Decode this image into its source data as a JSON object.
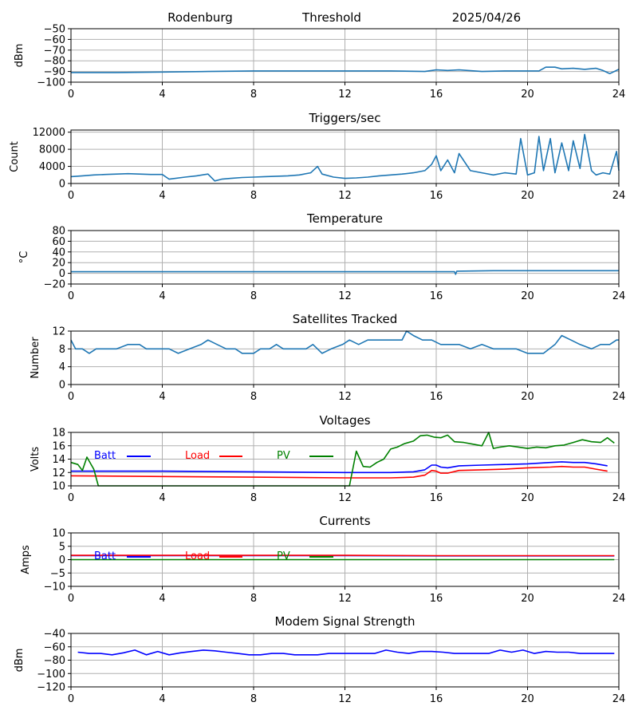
{
  "header": {
    "station": "Rodenburg",
    "panel": "Threshold",
    "date": "2025/04/26"
  },
  "colors": {
    "series_default": "#1f77b4",
    "batt": "#0000ff",
    "load": "#ff0000",
    "pv": "#008000",
    "grid": "#b0b0b0"
  },
  "chart_data": [
    {
      "type": "line",
      "title": "",
      "ylabel": "dBm",
      "xlim": [
        0,
        24
      ],
      "ylim": [
        -100,
        -50
      ],
      "yticks": [
        -100,
        -90,
        -80,
        -70,
        -60,
        -50
      ],
      "xticks": [
        0,
        4,
        8,
        12,
        16,
        20,
        24
      ],
      "grid": true,
      "series": [
        {
          "color": "#1f77b4",
          "x": [
            0,
            2,
            4,
            6,
            8,
            10,
            12,
            14,
            15.5,
            16,
            16.5,
            17,
            18,
            19,
            20,
            20.5,
            20.8,
            21.2,
            21.5,
            22,
            22.5,
            23,
            23.3,
            23.6,
            24
          ],
          "y": [
            -91,
            -91,
            -90.5,
            -90,
            -89.5,
            -89.5,
            -89.5,
            -89.5,
            -90,
            -88.5,
            -89,
            -88.5,
            -90,
            -89.5,
            -89.5,
            -89.5,
            -86,
            -86,
            -87.5,
            -87,
            -88,
            -87,
            -89,
            -92,
            -88
          ]
        }
      ]
    },
    {
      "type": "line",
      "title": "Triggers/sec",
      "ylabel": "Count",
      "xlim": [
        0,
        24
      ],
      "ylim": [
        0,
        12500
      ],
      "yticks": [
        0,
        4000,
        8000,
        12000
      ],
      "xticks": [
        0,
        4,
        8,
        12,
        16,
        20,
        24
      ],
      "grid": true,
      "series": [
        {
          "color": "#1f77b4",
          "x": [
            0,
            0.5,
            1,
            1.5,
            2,
            2.5,
            3,
            3.5,
            4,
            4.3,
            5,
            5.5,
            6,
            6.3,
            6.6,
            7,
            7.5,
            8,
            8.5,
            9,
            9.5,
            10,
            10.5,
            10.8,
            11,
            11.5,
            12,
            12.5,
            13,
            13.5,
            14,
            14.5,
            15,
            15.5,
            15.8,
            16,
            16.2,
            16.5,
            16.8,
            17,
            17.5,
            18,
            18.5,
            19,
            19.5,
            19.7,
            20,
            20.3,
            20.5,
            20.7,
            21,
            21.2,
            21.5,
            21.8,
            22,
            22.3,
            22.5,
            22.8,
            23,
            23.3,
            23.6,
            23.9,
            24
          ],
          "y": [
            1600,
            1800,
            2000,
            2100,
            2200,
            2300,
            2200,
            2100,
            2100,
            1000,
            1500,
            1800,
            2200,
            600,
            1000,
            1200,
            1400,
            1500,
            1600,
            1700,
            1800,
            2000,
            2500,
            4000,
            2200,
            1500,
            1200,
            1300,
            1500,
            1800,
            2000,
            2200,
            2500,
            3000,
            4500,
            6500,
            3000,
            5500,
            2500,
            7000,
            3000,
            2500,
            2000,
            2500,
            2200,
            10500,
            2000,
            2500,
            11000,
            3000,
            10500,
            2500,
            9500,
            3000,
            10000,
            3500,
            11500,
            3000,
            2000,
            2500,
            2200,
            7500,
            3000
          ]
        }
      ]
    },
    {
      "type": "line",
      "title": "Temperature",
      "ylabel": "°C",
      "xlim": [
        0,
        24
      ],
      "ylim": [
        -20,
        80
      ],
      "yticks": [
        -20,
        0,
        20,
        40,
        60,
        80
      ],
      "xticks": [
        0,
        4,
        8,
        12,
        16,
        20,
        24
      ],
      "grid": true,
      "series": [
        {
          "color": "#1f77b4",
          "x": [
            0,
            4,
            8,
            12,
            16,
            16.8,
            16.85,
            16.9,
            18.5,
            20,
            24
          ],
          "y": [
            3,
            3,
            3,
            3,
            3,
            3,
            -2,
            4,
            5,
            5,
            5
          ]
        }
      ]
    },
    {
      "type": "line",
      "title": "Satellites Tracked",
      "ylabel": "Number",
      "xlim": [
        0,
        24
      ],
      "ylim": [
        0,
        12
      ],
      "yticks": [
        0,
        4,
        8,
        12
      ],
      "xticks": [
        0,
        4,
        8,
        12,
        16,
        20,
        24
      ],
      "grid": true,
      "series": [
        {
          "color": "#1f77b4",
          "x": [
            0,
            0.2,
            0.5,
            0.8,
            1.1,
            1.5,
            2,
            2.5,
            3,
            3.3,
            3.7,
            4.3,
            4.7,
            5.2,
            5.7,
            6,
            6.4,
            6.8,
            7.2,
            7.5,
            8,
            8.3,
            8.7,
            9,
            9.3,
            9.8,
            10.3,
            10.6,
            11,
            11.4,
            11.9,
            12.2,
            12.6,
            13,
            13.5,
            14,
            14.5,
            14.7,
            15,
            15.4,
            15.8,
            16.2,
            16.6,
            17,
            17.5,
            18,
            18.5,
            19,
            19.5,
            20,
            20.3,
            20.7,
            21.2,
            21.5,
            21.9,
            22.3,
            22.8,
            23.2,
            23.6,
            23.9,
            24
          ],
          "y": [
            10,
            8,
            8,
            7,
            8,
            8,
            8,
            9,
            9,
            8,
            8,
            8,
            7,
            8,
            9,
            10,
            9,
            8,
            8,
            7,
            7,
            8,
            8,
            9,
            8,
            8,
            8,
            9,
            7,
            8,
            9,
            10,
            9,
            10,
            10,
            10,
            10,
            12,
            11,
            10,
            10,
            9,
            9,
            9,
            8,
            9,
            8,
            8,
            8,
            7,
            7,
            7,
            9,
            11,
            10,
            9,
            8,
            9,
            9,
            10,
            10
          ]
        }
      ]
    },
    {
      "type": "line",
      "title": "Voltages",
      "ylabel": "Volts",
      "xlim": [
        0,
        24
      ],
      "ylim": [
        10,
        18
      ],
      "yticks": [
        10,
        12,
        14,
        16,
        18
      ],
      "xticks": [
        0,
        4,
        8,
        12,
        16,
        20,
        24
      ],
      "grid": true,
      "legend": "top-left",
      "series": [
        {
          "name": "Batt",
          "color": "#0000ff",
          "x": [
            0,
            4,
            8,
            12,
            14,
            15,
            15.5,
            15.8,
            16,
            16.2,
            16.5,
            17,
            18,
            19,
            20,
            21,
            21.5,
            22,
            22.5,
            23,
            23.5
          ],
          "y": [
            12.2,
            12.2,
            12.1,
            12.0,
            12.0,
            12.1,
            12.4,
            13.1,
            13.1,
            12.8,
            12.7,
            13.0,
            13.1,
            13.2,
            13.3,
            13.5,
            13.6,
            13.5,
            13.5,
            13.3,
            13.0
          ]
        },
        {
          "name": "Load",
          "color": "#ff0000",
          "x": [
            0,
            4,
            8,
            12,
            14,
            15,
            15.5,
            15.8,
            16,
            16.2,
            16.5,
            17,
            18,
            19,
            20,
            21,
            21.5,
            22,
            22.5,
            23,
            23.5
          ],
          "y": [
            11.5,
            11.4,
            11.3,
            11.2,
            11.2,
            11.3,
            11.6,
            12.3,
            12.2,
            11.9,
            11.9,
            12.3,
            12.4,
            12.5,
            12.7,
            12.8,
            12.9,
            12.8,
            12.8,
            12.5,
            12.2
          ]
        },
        {
          "name": "PV",
          "color": "#008000",
          "x": [
            0,
            0.3,
            0.5,
            0.7,
            1.0,
            1.2,
            12.2,
            12.5,
            12.8,
            13.1,
            13.4,
            13.7,
            14.0,
            14.3,
            14.6,
            15.0,
            15.3,
            15.6,
            15.9,
            16.2,
            16.5,
            16.8,
            17.2,
            17.5,
            18.0,
            18.3,
            18.5,
            18.8,
            19.2,
            19.6,
            20.0,
            20.4,
            20.8,
            21.2,
            21.6,
            22.0,
            22.4,
            22.8,
            23.2,
            23.5,
            23.8
          ],
          "y": [
            13.5,
            13.2,
            12.3,
            14.3,
            12.5,
            10,
            10,
            15.2,
            12.9,
            12.8,
            13.5,
            14.0,
            15.5,
            15.8,
            16.3,
            16.7,
            17.5,
            17.6,
            17.3,
            17.2,
            17.6,
            16.6,
            16.5,
            16.3,
            16.0,
            18.2,
            15.6,
            15.8,
            16.0,
            15.8,
            15.6,
            15.8,
            15.7,
            16.0,
            16.1,
            16.5,
            16.9,
            16.6,
            16.5,
            17.2,
            16.4
          ]
        }
      ]
    },
    {
      "type": "line",
      "title": "Currents",
      "ylabel": "Amps",
      "xlim": [
        0,
        24
      ],
      "ylim": [
        -10,
        10
      ],
      "yticks": [
        -10,
        -5,
        0,
        5,
        10
      ],
      "xticks": [
        0,
        4,
        8,
        12,
        16,
        20,
        24
      ],
      "grid": true,
      "legend": "top-left",
      "series": [
        {
          "name": "Batt",
          "color": "#0000ff",
          "x": [
            0,
            4,
            8,
            12,
            16,
            20,
            23.8
          ],
          "y": [
            1.5,
            1.5,
            1.5,
            1.5,
            1.4,
            1.4,
            1.4
          ]
        },
        {
          "name": "Load",
          "color": "#ff0000",
          "x": [
            0,
            4,
            8,
            12,
            16,
            20,
            23.8
          ],
          "y": [
            1.6,
            1.6,
            1.6,
            1.6,
            1.5,
            1.5,
            1.5
          ]
        },
        {
          "name": "PV",
          "color": "#008000",
          "x": [
            0,
            4,
            8,
            12,
            16,
            20,
            23.8
          ],
          "y": [
            0,
            0,
            0,
            0,
            0,
            0,
            0
          ]
        }
      ]
    },
    {
      "type": "line",
      "title": "Modem Signal Strength",
      "ylabel": "dBm",
      "xlim": [
        0,
        24
      ],
      "ylim": [
        -120,
        -40
      ],
      "yticks": [
        -120,
        -100,
        -80,
        -60,
        -40
      ],
      "xticks": [
        0,
        4,
        8,
        12,
        16,
        20,
        24
      ],
      "grid": true,
      "series": [
        {
          "color": "#0000ff",
          "x": [
            0.3,
            0.8,
            1.3,
            1.8,
            2.3,
            2.8,
            3.3,
            3.8,
            4.3,
            4.8,
            5.3,
            5.8,
            6.3,
            6.8,
            7.3,
            7.8,
            8.3,
            8.8,
            9.3,
            9.8,
            10.3,
            10.8,
            11.3,
            11.8,
            12.3,
            12.8,
            13.3,
            13.8,
            14.3,
            14.8,
            15.3,
            15.8,
            16.3,
            16.8,
            17.3,
            17.8,
            18.3,
            18.8,
            19.3,
            19.8,
            20.3,
            20.8,
            21.3,
            21.8,
            22.3,
            22.8,
            23.3,
            23.8
          ],
          "y": [
            -68,
            -70,
            -70,
            -72,
            -69,
            -65,
            -72,
            -67,
            -72,
            -69,
            -67,
            -65,
            -66,
            -68,
            -70,
            -72,
            -72,
            -70,
            -70,
            -72,
            -72,
            -72,
            -70,
            -70,
            -70,
            -70,
            -70,
            -65,
            -68,
            -70,
            -67,
            -67,
            -68,
            -70,
            -70,
            -70,
            -70,
            -65,
            -68,
            -65,
            -70,
            -67,
            -68,
            -68,
            -70,
            -70,
            -70,
            -70
          ]
        }
      ]
    }
  ]
}
